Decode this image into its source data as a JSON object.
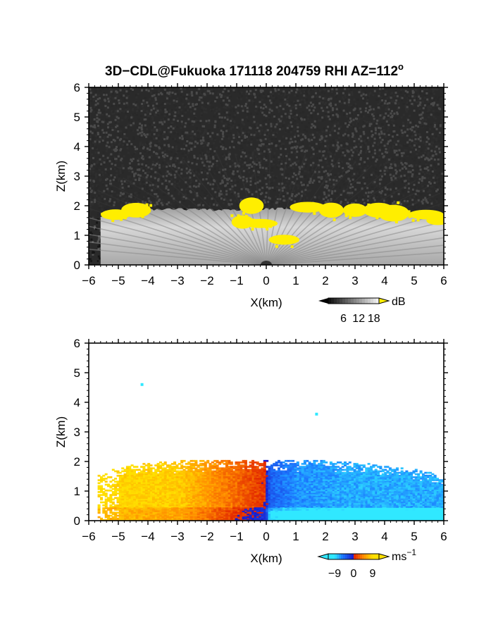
{
  "figure": {
    "title": "3D−CDL@Fukuoka 171118 204759 RHI AZ=112",
    "title_superscript": "o"
  },
  "chart_data": [
    {
      "type": "heatmap",
      "panel": "top",
      "quantity": "backscatter intensity",
      "colormap": "grayscale with yellow above 18",
      "xlabel": "X(km)",
      "ylabel": "Z(km)",
      "xlim": [
        -6,
        6
      ],
      "ylim": [
        0,
        6
      ],
      "xticks": [
        "−6",
        "−5",
        "−4",
        "−3",
        "−2",
        "−1",
        "0",
        "1",
        "2",
        "3",
        "4",
        "5",
        "6"
      ],
      "yticks": [
        "0",
        "1",
        "2",
        "3",
        "4",
        "5",
        "6"
      ],
      "colorbar": {
        "unit": "dB",
        "ticks": [
          "6",
          "12",
          "18"
        ],
        "tick_values": [
          6,
          12,
          18
        ],
        "range": [
          0,
          20
        ]
      },
      "cloud_top_km": [
        {
          "x": -5.6,
          "z": 1.6
        },
        {
          "x": -4.5,
          "z": 1.85
        },
        {
          "x": -3.0,
          "z": 1.9
        },
        {
          "x": -1.0,
          "z": 1.85
        },
        {
          "x": 0.0,
          "z": 1.9
        },
        {
          "x": 1.5,
          "z": 1.95
        },
        {
          "x": 3.0,
          "z": 1.9
        },
        {
          "x": 4.5,
          "z": 1.8
        },
        {
          "x": 6.0,
          "z": 1.6
        }
      ],
      "yellow_features": [
        {
          "x": -4.4,
          "z": 1.85
        },
        {
          "x": -5.1,
          "z": 1.7
        },
        {
          "x": -0.8,
          "z": 1.45
        },
        {
          "x": -0.5,
          "z": 2.0
        },
        {
          "x": -0.2,
          "z": 1.4
        },
        {
          "x": 0.6,
          "z": 0.85
        },
        {
          "x": 1.4,
          "z": 1.95
        },
        {
          "x": 2.2,
          "z": 1.85
        },
        {
          "x": 3.0,
          "z": 1.85
        },
        {
          "x": 3.8,
          "z": 1.85
        },
        {
          "x": 4.3,
          "z": 1.75
        },
        {
          "x": 5.4,
          "z": 1.7
        },
        {
          "x": 5.8,
          "z": 1.5
        }
      ],
      "colors": {
        "noise": "#2a2a2a",
        "cloud": "#d8d8d8",
        "high": "#ffee00",
        "axis": "#000000"
      }
    },
    {
      "type": "heatmap",
      "panel": "bottom",
      "quantity": "Doppler velocity",
      "colormap": "cyan-blue (negative) to red-yellow (positive)",
      "xlabel": "X(km)",
      "ylabel": "Z(km)",
      "xlim": [
        -6,
        6
      ],
      "ylim": [
        0,
        6
      ],
      "xticks": [
        "−6",
        "−5",
        "−4",
        "−3",
        "−2",
        "−1",
        "0",
        "1",
        "2",
        "3",
        "4",
        "5",
        "6"
      ],
      "yticks": [
        "0",
        "1",
        "2",
        "3",
        "4",
        "5",
        "6"
      ],
      "colorbar": {
        "unit": "ms",
        "unit_superscript": "−1",
        "ticks": [
          "−9",
          "0",
          "9"
        ],
        "tick_values": [
          -9,
          0,
          9
        ],
        "range": [
          -12,
          12
        ]
      },
      "cloud_top_km": [
        {
          "x": -5.6,
          "z": 1.6
        },
        {
          "x": -4.5,
          "z": 1.9
        },
        {
          "x": -3.0,
          "z": 2.0
        },
        {
          "x": -1.0,
          "z": 2.05
        },
        {
          "x": 0.0,
          "z": 2.0
        },
        {
          "x": 1.5,
          "z": 2.05
        },
        {
          "x": 3.0,
          "z": 1.95
        },
        {
          "x": 4.5,
          "z": 1.8
        },
        {
          "x": 6.0,
          "z": 1.55
        }
      ],
      "velocity_profile": [
        {
          "x": -5.5,
          "v": 9
        },
        {
          "x": -3.0,
          "v": 8
        },
        {
          "x": -1.0,
          "v": 3
        },
        {
          "x": -0.1,
          "v": 1
        },
        {
          "x": 0.1,
          "v": -4
        },
        {
          "x": 1.0,
          "v": -6
        },
        {
          "x": 3.0,
          "v": -7
        },
        {
          "x": 5.5,
          "v": -7
        }
      ],
      "isolated_points": [
        {
          "x": -4.2,
          "z": 4.6
        },
        {
          "x": 1.7,
          "z": 3.6
        }
      ],
      "colors": {
        "positive_max": "#ffe000",
        "zero_pos": "#e02000",
        "zero_neg": "#1a1acc",
        "negative_max": "#30e8ff",
        "axis": "#000000"
      }
    }
  ]
}
